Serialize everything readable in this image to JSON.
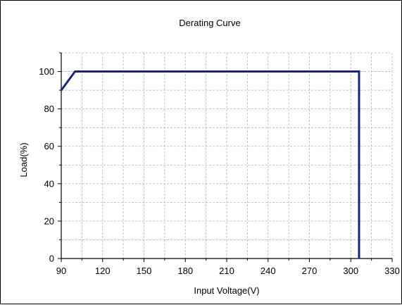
{
  "chart_data": {
    "type": "line",
    "title": "Derating Curve",
    "xlabel": "Input Voltage(V)",
    "ylabel": "Load(%)",
    "xlim": [
      90,
      330
    ],
    "ylim": [
      0,
      110
    ],
    "x_ticks": [
      90,
      120,
      150,
      180,
      210,
      240,
      270,
      300,
      330
    ],
    "y_ticks": [
      0,
      20,
      40,
      60,
      80,
      100
    ],
    "grid": true,
    "legend": "none",
    "series": [
      {
        "x": [
          90,
          100,
          306,
          306
        ],
        "y": [
          90,
          100,
          100,
          0
        ]
      }
    ],
    "colors": {
      "line": "#1a237e",
      "grid": "#b5b5b5",
      "axis": "#000000"
    }
  }
}
